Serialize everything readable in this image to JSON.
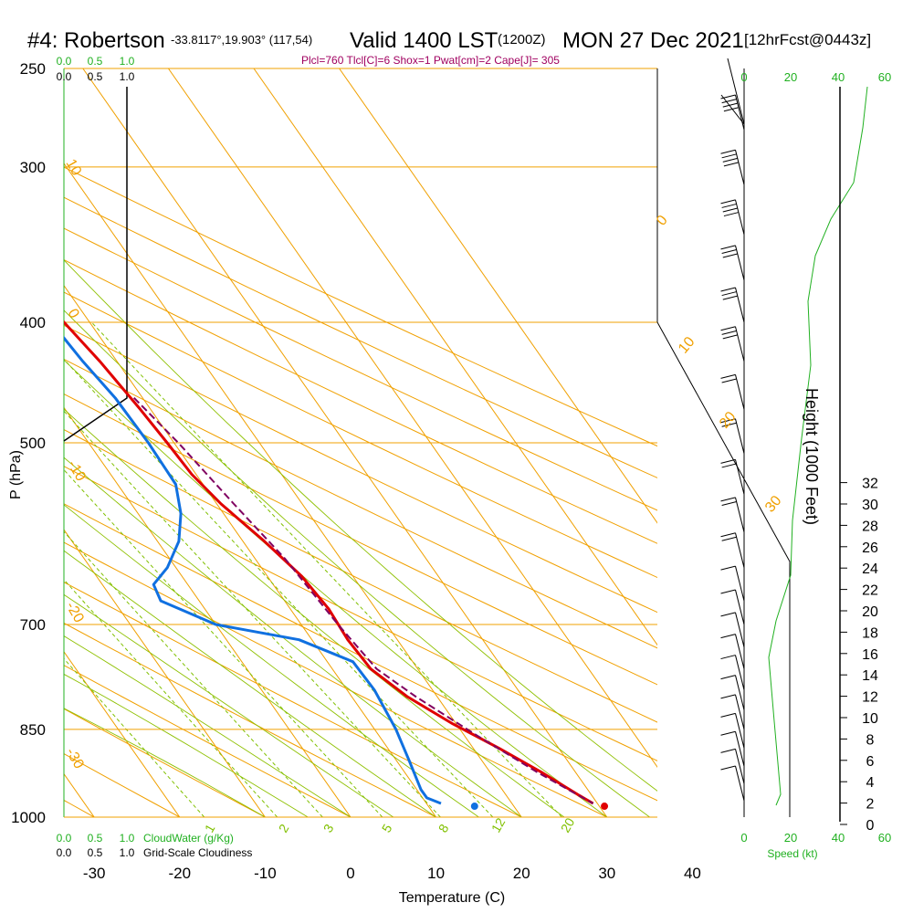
{
  "chart_data": {
    "type": "line",
    "title": {
      "station": "#4: Robertson",
      "coords": "-33.8117°,19.903° (117,54)",
      "valid": "Valid 1400 LST",
      "utc": "(1200Z)",
      "date": "MON 27 Dec 2021",
      "forecast": "[12hrFcst@0443z]"
    },
    "subtitle": "Plcl=760 Tlcl[C]=6 Shox=1 Pwat[cm]=2 Cape[J]= 305",
    "xlabel": "Temperature (C)",
    "ylabel": "P (hPa)",
    "right_ylabel": "Height (1000 Feet)",
    "xlim": [
      -35,
      35
    ],
    "pressure_ticks": [
      "250",
      "300",
      "400",
      "500",
      "700",
      "850",
      "1000"
    ],
    "temperature_ticks": [
      "-30",
      "-20",
      "-10",
      "0",
      "10",
      "20",
      "30",
      "40"
    ],
    "height_ticks": [
      "0",
      "2",
      "4",
      "6",
      "8",
      "10",
      "12",
      "14",
      "16",
      "18",
      "20",
      "22",
      "24",
      "26",
      "28",
      "30",
      "32"
    ],
    "cloud_water_ticks": [
      "0.0",
      "0.5",
      "1.0"
    ],
    "cloud_water_label": "CloudWater (g/Kg)",
    "cloudiness_ticks": [
      "0.0",
      "0.5",
      "1.0"
    ],
    "cloudiness_label": "Grid-Scale Cloudiness",
    "speed_ticks": [
      "0",
      "20",
      "40",
      "60"
    ],
    "speed_label": "Speed (kt)",
    "dry_adiabat_labels": [
      "-10",
      "0",
      "-10",
      "-20",
      "-30",
      "0",
      "10",
      "20",
      "30"
    ],
    "mixing_ratio_labels": [
      "1",
      "2",
      "3",
      "5",
      "8",
      "12",
      "20"
    ],
    "series": [
      {
        "name": "Temperature",
        "color": "#e00000",
        "x": [
          0.2,
          2.5,
          4.5,
          6.0,
          7.0,
          8.0,
          8.8,
          9.2,
          9.5,
          10.5,
          12.5,
          14.0,
          14.5,
          14.2,
          14.5,
          16.5,
          19.5,
          23.0,
          26.0,
          28.5,
          29.5
        ],
        "y": [
          263,
          300,
          340,
          370,
          400,
          430,
          470,
          500,
          530,
          560,
          600,
          640,
          680,
          720,
          760,
          800,
          840,
          880,
          920,
          960,
          975
        ]
      },
      {
        "name": "Dewpoint",
        "color": "#1070e0",
        "x": [
          -4.2,
          -1.5,
          1.5,
          3.8,
          5.5,
          6.0,
          6.8,
          7.0,
          6.8,
          5.0,
          2.5,
          -1.0,
          -4.0,
          -4.5,
          0,
          8.5,
          13.0,
          13.2,
          12.5,
          11.5,
          10.5,
          10.5,
          11.7
        ],
        "y": [
          263,
          300,
          340,
          370,
          400,
          430,
          460,
          500,
          540,
          570,
          600,
          630,
          650,
          670,
          700,
          720,
          750,
          790,
          850,
          900,
          950,
          965,
          975
        ]
      },
      {
        "name": "Parcel",
        "color": "#800060",
        "x": [
          9.0,
          10.5,
          12.0,
          13.5,
          14.3,
          15.2,
          17.5,
          21.5,
          25.5,
          29.5
        ],
        "y": [
          460,
          500,
          560,
          620,
          700,
          760,
          800,
          860,
          920,
          975
        ]
      }
    ],
    "surface_temperature": 30.6,
    "surface_dewpoint": 15.4,
    "wind_profile": [
      {
        "p": 280,
        "spd": 35
      },
      {
        "p": 310,
        "spd": 35
      },
      {
        "p": 340,
        "spd": 35
      },
      {
        "p": 370,
        "spd": 30
      },
      {
        "p": 400,
        "spd": 30
      },
      {
        "p": 430,
        "spd": 25
      },
      {
        "p": 470,
        "spd": 20
      },
      {
        "p": 510,
        "spd": 20
      },
      {
        "p": 550,
        "spd": 15
      },
      {
        "p": 590,
        "spd": 15
      },
      {
        "p": 630,
        "spd": 15
      },
      {
        "p": 670,
        "spd": 10
      },
      {
        "p": 700,
        "spd": 10
      },
      {
        "p": 730,
        "spd": 10
      },
      {
        "p": 760,
        "spd": 10
      },
      {
        "p": 790,
        "spd": 10
      },
      {
        "p": 820,
        "spd": 10
      },
      {
        "p": 850,
        "spd": 10
      },
      {
        "p": 880,
        "spd": 10
      },
      {
        "p": 910,
        "spd": 10
      },
      {
        "p": 940,
        "spd": 10
      },
      {
        "p": 970,
        "spd": 10
      }
    ],
    "grid": true,
    "colors": {
      "isobar": "#f0a000",
      "isotherm": "#f0a000",
      "mixing_ratio": "#80c000",
      "moist_adiabat": "#8ec000",
      "green_text": "#20b020",
      "subtitle": "#a00060"
    }
  }
}
